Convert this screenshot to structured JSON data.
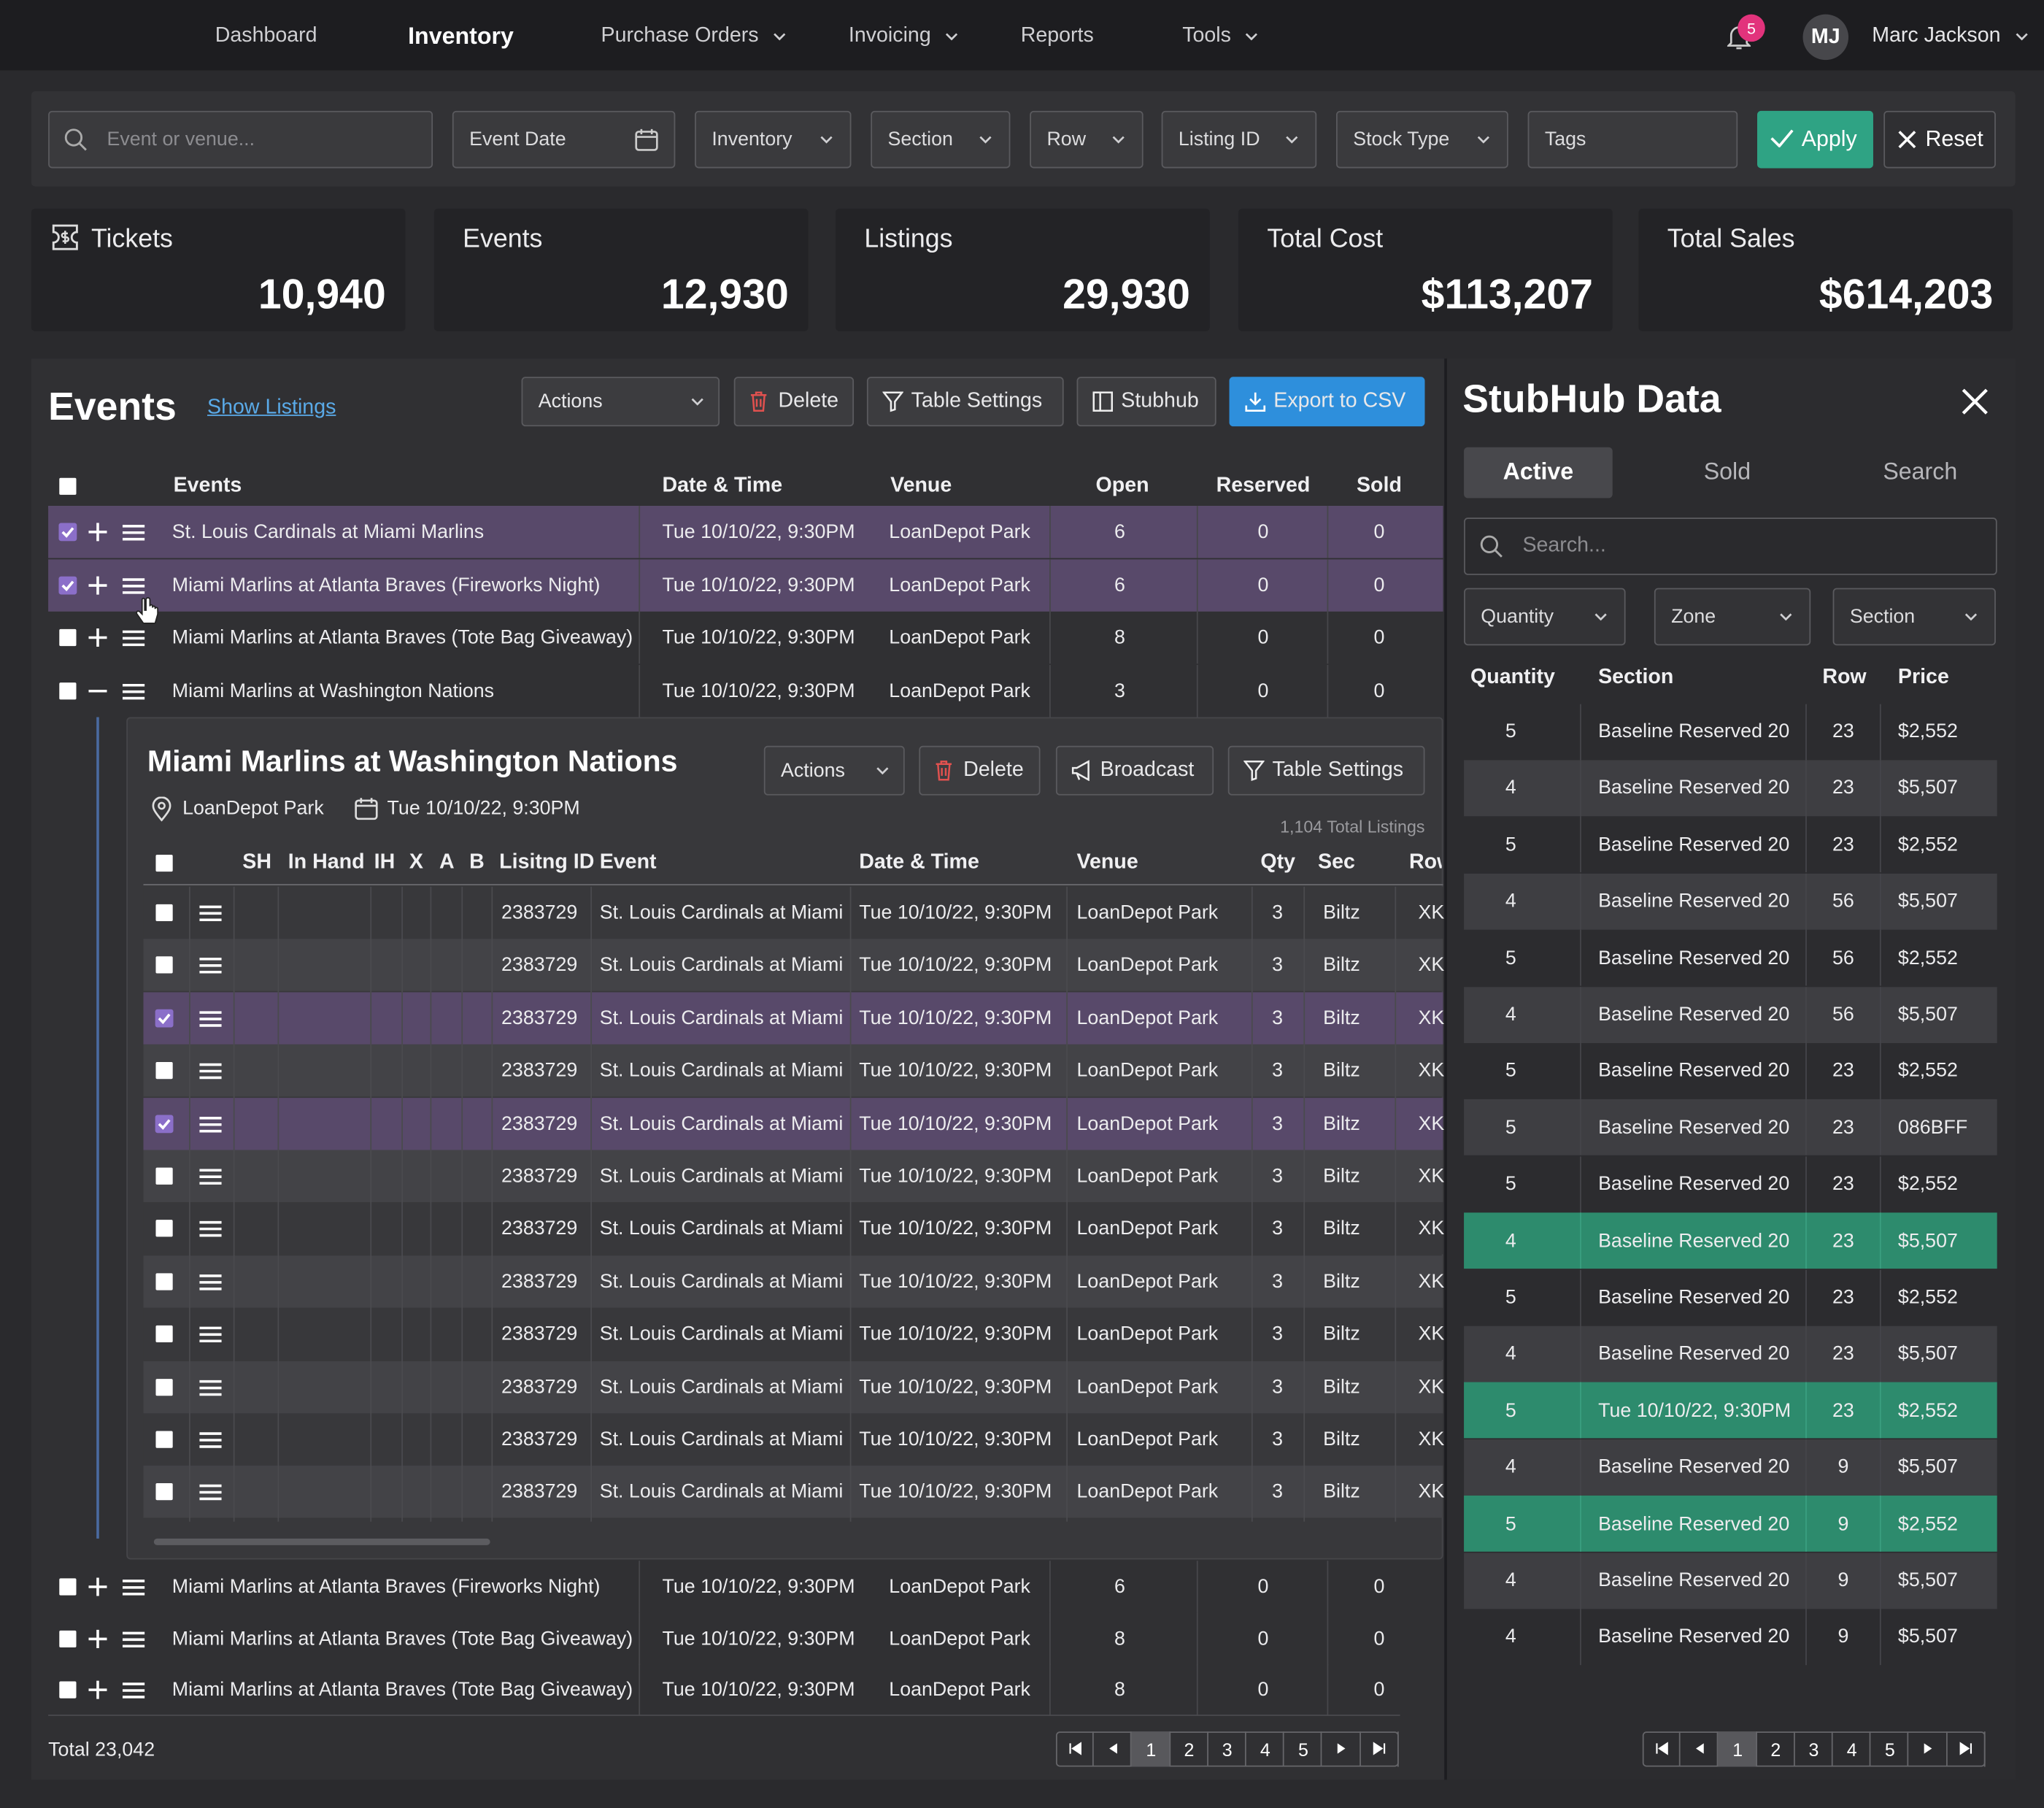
{
  "nav": {
    "items": [
      "Dashboard",
      "Inventory",
      "Purchase Orders",
      "Invoicing",
      "Reports",
      "Tools"
    ],
    "active": 1,
    "notifications": "5",
    "avatar": "MJ",
    "user": "Marc Jackson"
  },
  "filters": {
    "search_placeholder": "Event or venue...",
    "fields": [
      "Event Date",
      "Inventory",
      "Section",
      "Row",
      "Listing ID",
      "Stock Type",
      "Tags"
    ],
    "apply": "Apply",
    "reset": "Reset"
  },
  "stats": [
    {
      "label": "Tickets",
      "value": "10,940"
    },
    {
      "label": "Events",
      "value": "12,930"
    },
    {
      "label": "Listings",
      "value": "29,930"
    },
    {
      "label": "Total Cost",
      "value": "$113,207"
    },
    {
      "label": "Total Sales",
      "value": "$614,203"
    }
  ],
  "events": {
    "title": "Events",
    "show_listings": "Show Listings",
    "buttons": [
      "Actions",
      "Delete",
      "Table Settings",
      "Stubhub",
      "Export to CSV"
    ],
    "columns": [
      "Events",
      "Date & Time",
      "Venue",
      "Open",
      "Reserved",
      "Sold"
    ],
    "rows": [
      [
        "St. Louis Cardinals at Miami Marlins",
        "Tue 10/10/22, 9:30PM",
        "LoanDepot Park",
        "6",
        "0",
        "0"
      ],
      [
        "Miami Marlins at Atlanta Braves (Fireworks Night)",
        "Tue 10/10/22, 9:30PM",
        "LoanDepot Park",
        "6",
        "0",
        "0"
      ],
      [
        "Miami Marlins at Atlanta Braves (Tote Bag Giveaway)",
        "Tue 10/10/22, 9:30PM",
        "LoanDepot Park",
        "8",
        "0",
        "0"
      ],
      [
        "Miami Marlins at Washington Nations",
        "Tue 10/10/22, 9:30PM",
        "LoanDepot Park",
        "3",
        "0",
        "0"
      ],
      [
        "Miami Marlins at Atlanta Braves (Fireworks Night)",
        "Tue 10/10/22, 9:30PM",
        "LoanDepot Park",
        "6",
        "0",
        "0"
      ],
      [
        "Miami Marlins at Atlanta Braves (Tote Bag Giveaway)",
        "Tue 10/10/22, 9:30PM",
        "LoanDepot Park",
        "8",
        "0",
        "0"
      ],
      [
        "Miami Marlins at Atlanta Braves (Tote Bag Giveaway)",
        "Tue 10/10/22, 9:30PM",
        "LoanDepot Park",
        "8",
        "0",
        "0"
      ]
    ],
    "checked_rows": [
      0,
      1
    ],
    "expanded_row": 3,
    "total": "Total 23,042",
    "pages": [
      "1",
      "2",
      "3",
      "4",
      "5"
    ]
  },
  "detail": {
    "title": "Miami Marlins at Washington Nations",
    "venue": "LoanDepot Park",
    "date": "Tue 10/10/22, 9:30PM",
    "buttons": [
      "Actions",
      "Delete",
      "Broadcast",
      "Table Settings"
    ],
    "total_listings": "1,104 Total Listings",
    "columns": [
      "SH",
      "In Hand",
      "IH",
      "X",
      "A",
      "B",
      "Lisitng ID",
      "Event",
      "Date & Time",
      "Venue",
      "Qty",
      "Sec",
      "Row"
    ],
    "rows": [
      [
        "2383729",
        "St. Louis Cardinals at Miami",
        "Tue 10/10/22, 9:30PM",
        "LoanDepot Park",
        "3",
        "Biltz",
        "XK"
      ],
      [
        "2383729",
        "St. Louis Cardinals at Miami",
        "Tue 10/10/22, 9:30PM",
        "LoanDepot Park",
        "3",
        "Biltz",
        "XK"
      ],
      [
        "2383729",
        "St. Louis Cardinals at Miami",
        "Tue 10/10/22, 9:30PM",
        "LoanDepot Park",
        "3",
        "Biltz",
        "XK"
      ],
      [
        "2383729",
        "St. Louis Cardinals at Miami",
        "Tue 10/10/22, 9:30PM",
        "LoanDepot Park",
        "3",
        "Biltz",
        "XK"
      ],
      [
        "2383729",
        "St. Louis Cardinals at Miami",
        "Tue 10/10/22, 9:30PM",
        "LoanDepot Park",
        "3",
        "Biltz",
        "XK"
      ],
      [
        "2383729",
        "St. Louis Cardinals at Miami",
        "Tue 10/10/22, 9:30PM",
        "LoanDepot Park",
        "3",
        "Biltz",
        "XK"
      ],
      [
        "2383729",
        "St. Louis Cardinals at Miami",
        "Tue 10/10/22, 9:30PM",
        "LoanDepot Park",
        "3",
        "Biltz",
        "XK"
      ],
      [
        "2383729",
        "St. Louis Cardinals at Miami",
        "Tue 10/10/22, 9:30PM",
        "LoanDepot Park",
        "3",
        "Biltz",
        "XK"
      ],
      [
        "2383729",
        "St. Louis Cardinals at Miami",
        "Tue 10/10/22, 9:30PM",
        "LoanDepot Park",
        "3",
        "Biltz",
        "XK"
      ],
      [
        "2383729",
        "St. Louis Cardinals at Miami",
        "Tue 10/10/22, 9:30PM",
        "LoanDepot Park",
        "3",
        "Biltz",
        "XK"
      ],
      [
        "2383729",
        "St. Louis Cardinals at Miami",
        "Tue 10/10/22, 9:30PM",
        "LoanDepot Park",
        "3",
        "Biltz",
        "XK"
      ],
      [
        "2383729",
        "St. Louis Cardinals at Miami",
        "Tue 10/10/22, 9:30PM",
        "LoanDepot Park",
        "3",
        "Biltz",
        "XK"
      ]
    ],
    "checked_rows": [
      2,
      4
    ]
  },
  "stubhub": {
    "title": "StubHub Data",
    "tabs": [
      "Active",
      "Sold",
      "Search"
    ],
    "active_tab": 0,
    "search_placeholder": "Search...",
    "dropdowns": [
      "Quantity",
      "Zone",
      "Section"
    ],
    "columns": [
      "Quantity",
      "Section",
      "Row",
      "Price"
    ],
    "rows": [
      [
        "5",
        "Baseline Reserved 20",
        "23",
        "$2,552"
      ],
      [
        "4",
        "Baseline Reserved 20",
        "23",
        "$5,507"
      ],
      [
        "5",
        "Baseline Reserved 20",
        "23",
        "$2,552"
      ],
      [
        "4",
        "Baseline Reserved 20",
        "56",
        "$5,507"
      ],
      [
        "5",
        "Baseline Reserved 20",
        "56",
        "$2,552"
      ],
      [
        "4",
        "Baseline Reserved 20",
        "56",
        "$5,507"
      ],
      [
        "5",
        "Baseline Reserved 20",
        "23",
        "$2,552"
      ],
      [
        "5",
        "Baseline Reserved 20",
        "23",
        "086BFF"
      ],
      [
        "5",
        "Baseline Reserved 20",
        "23",
        "$2,552"
      ],
      [
        "4",
        "Baseline Reserved 20",
        "23",
        "$5,507"
      ],
      [
        "5",
        "Baseline Reserved 20",
        "23",
        "$2,552"
      ],
      [
        "4",
        "Baseline Reserved 20",
        "23",
        "$5,507"
      ],
      [
        "5",
        "Tue 10/10/22, 9:30PM",
        "23",
        "$2,552"
      ],
      [
        "4",
        "Baseline Reserved 20",
        "9",
        "$5,507"
      ],
      [
        "5",
        "Baseline Reserved 20",
        "9",
        "$2,552"
      ],
      [
        "4",
        "Baseline Reserved 20",
        "9",
        "$5,507"
      ],
      [
        "4",
        "Baseline Reserved 20",
        "9",
        "$5,507"
      ]
    ],
    "highlighted_rows": [
      9,
      12,
      14
    ],
    "pages": [
      "1",
      "2",
      "3",
      "4",
      "5"
    ]
  }
}
